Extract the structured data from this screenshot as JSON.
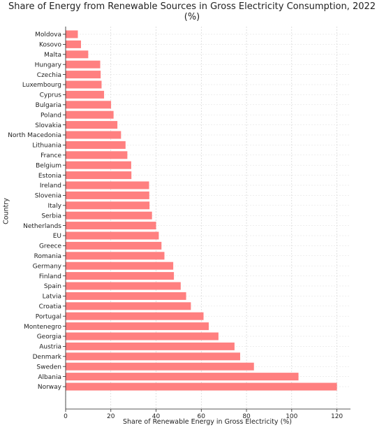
{
  "chart_data": {
    "type": "bar",
    "orientation": "horizontal",
    "title": "Share of Energy from Renewable Sources in Gross Electricity Consumption, 2022 (%)",
    "xlabel": "Share of Renewable Energy in Gross Electricity (%)",
    "ylabel": "Country",
    "xlim": [
      0,
      126
    ],
    "xticks": [
      0,
      20,
      40,
      60,
      80,
      100,
      120
    ],
    "grid": true,
    "bar_color": "#ff8080",
    "categories": [
      "Moldova",
      "Kosovo",
      "Malta",
      "Hungary",
      "Czechia",
      "Luxembourg",
      "Cyprus",
      "Bulgaria",
      "Poland",
      "Slovakia",
      "North Macedonia",
      "Lithuania",
      "France",
      "Belgium",
      "Estonia",
      "Ireland",
      "Slovenia",
      "Italy",
      "Serbia",
      "Netherlands",
      "EU",
      "Greece",
      "Romania",
      "Germany",
      "Finland",
      "Spain",
      "Latvia",
      "Croatia",
      "Portugal",
      "Montenegro",
      "Georgia",
      "Austria",
      "Denmark",
      "Sweden",
      "Albania",
      "Norway"
    ],
    "values": [
      5.4,
      6.8,
      10.0,
      15.3,
      15.5,
      15.9,
      17.0,
      20.1,
      21.2,
      22.9,
      24.5,
      26.5,
      27.3,
      29.0,
      29.1,
      36.9,
      37.0,
      37.1,
      38.2,
      40.0,
      41.2,
      42.4,
      43.7,
      47.6,
      47.9,
      50.9,
      53.3,
      55.4,
      61.0,
      63.3,
      67.6,
      74.7,
      77.2,
      83.3,
      103.0,
      120.0
    ]
  }
}
